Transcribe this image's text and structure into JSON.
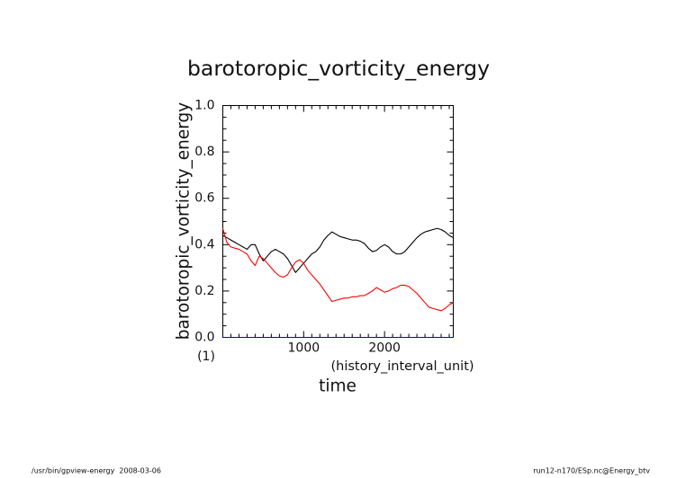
{
  "footer": {
    "left": "/usr/bin/gpview-energy  2008-03-06",
    "right": "run12-n170/ESp.nc@Energy_btv"
  },
  "chart_data": {
    "type": "line",
    "title": "barotoropic_vorticity_energy",
    "xlabel": "time",
    "xunit": "(history_interval_unit)",
    "ylabel": "barotoropic_vorticity_energy",
    "yunit": "(1)",
    "xlim": [
      0,
      2850
    ],
    "ylim": [
      0,
      1.0
    ],
    "xticks": [
      1000,
      2000
    ],
    "xtick_labels": [
      "1000",
      "2000"
    ],
    "yticks": [
      0,
      0.2,
      0.4,
      0.6,
      0.8,
      1.0
    ],
    "ytick_labels": [
      "0.0",
      "0.2",
      "0.4",
      "0.6",
      "0.8",
      "1.0"
    ],
    "grid": false,
    "x": [
      0,
      50,
      100,
      150,
      200,
      250,
      300,
      350,
      400,
      450,
      500,
      550,
      600,
      650,
      700,
      750,
      800,
      850,
      900,
      950,
      1000,
      1050,
      1100,
      1150,
      1200,
      1250,
      1300,
      1350,
      1400,
      1450,
      1500,
      1550,
      1600,
      1650,
      1700,
      1750,
      1800,
      1850,
      1900,
      1950,
      2000,
      2050,
      2100,
      2150,
      2200,
      2250,
      2300,
      2350,
      2400,
      2450,
      2500,
      2550,
      2600,
      2650,
      2700,
      2750,
      2800,
      2850
    ],
    "series": [
      {
        "color": "#000000",
        "values": [
          0.44,
          0.43,
          0.42,
          0.41,
          0.4,
          0.39,
          0.38,
          0.4,
          0.4,
          0.36,
          0.33,
          0.35,
          0.37,
          0.38,
          0.37,
          0.36,
          0.34,
          0.31,
          0.28,
          0.3,
          0.32,
          0.34,
          0.36,
          0.37,
          0.39,
          0.42,
          0.44,
          0.455,
          0.445,
          0.435,
          0.43,
          0.425,
          0.42,
          0.42,
          0.415,
          0.405,
          0.385,
          0.37,
          0.375,
          0.39,
          0.4,
          0.39,
          0.37,
          0.36,
          0.36,
          0.37,
          0.39,
          0.41,
          0.43,
          0.445,
          0.455,
          0.46,
          0.465,
          0.47,
          0.465,
          0.455,
          0.44,
          0.43
        ]
      },
      {
        "color": "#ff0000",
        "values": [
          0.47,
          0.41,
          0.39,
          0.385,
          0.38,
          0.37,
          0.36,
          0.33,
          0.31,
          0.35,
          0.34,
          0.32,
          0.3,
          0.28,
          0.265,
          0.26,
          0.27,
          0.3,
          0.325,
          0.335,
          0.32,
          0.29,
          0.27,
          0.25,
          0.23,
          0.205,
          0.18,
          0.155,
          0.16,
          0.165,
          0.17,
          0.17,
          0.175,
          0.175,
          0.18,
          0.18,
          0.19,
          0.2,
          0.215,
          0.205,
          0.195,
          0.2,
          0.21,
          0.215,
          0.225,
          0.225,
          0.22,
          0.205,
          0.19,
          0.17,
          0.15,
          0.13,
          0.125,
          0.12,
          0.115,
          0.125,
          0.14,
          0.15
        ]
      },
      {
        "color": "#0000ff",
        "values": [
          0,
          0,
          0,
          0,
          0,
          0,
          0,
          0,
          0,
          0,
          0,
          0,
          0,
          0,
          0,
          0,
          0,
          0,
          0,
          0,
          0,
          0,
          0,
          0,
          0,
          0,
          0,
          0,
          0,
          0,
          0,
          0,
          0,
          0,
          0,
          0,
          0,
          0,
          0,
          0,
          0,
          0,
          0,
          0,
          0,
          0,
          0,
          0,
          0,
          0,
          0,
          0,
          0,
          0,
          0,
          0,
          0,
          0
        ]
      }
    ]
  }
}
